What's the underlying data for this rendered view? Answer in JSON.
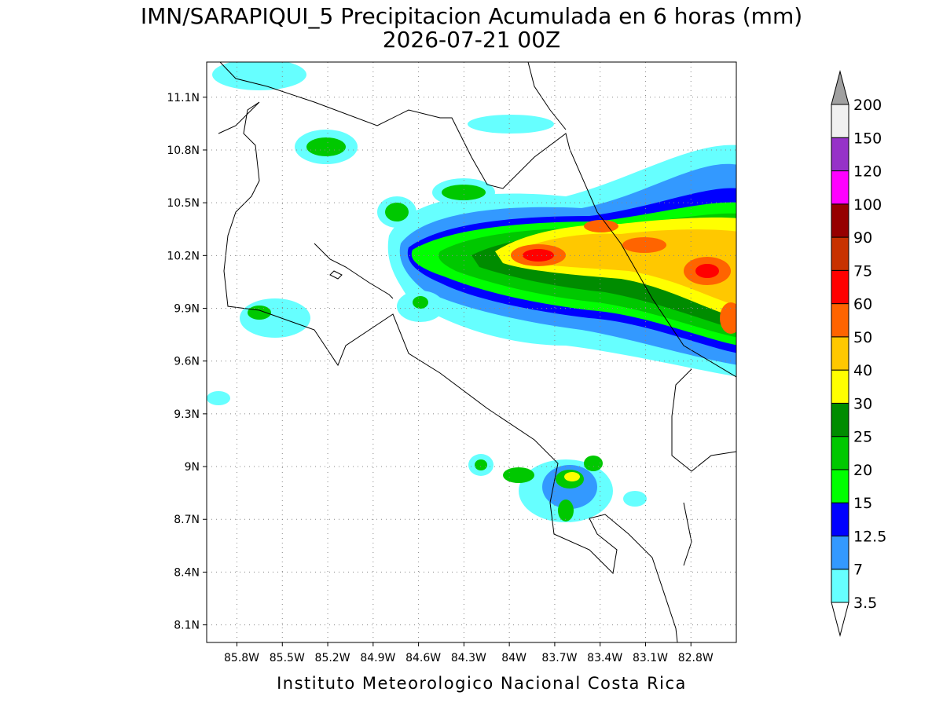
{
  "header": {
    "title": "IMN/SARAPIQUI_5 Precipitacion Acumulada en 6 horas (mm)",
    "subtitle": "2026-07-21 00Z"
  },
  "map": {
    "lonlim": [
      -86.0,
      -82.5
    ],
    "latlim": [
      8.0,
      11.3
    ],
    "grid": true,
    "lat_ticks": [
      {
        "value": 11.1,
        "label": "11.1N"
      },
      {
        "value": 10.8,
        "label": "10.8N"
      },
      {
        "value": 10.5,
        "label": "10.5N"
      },
      {
        "value": 10.2,
        "label": "10.2N"
      },
      {
        "value": 9.9,
        "label": "9.9N"
      },
      {
        "value": 9.6,
        "label": "9.6N"
      },
      {
        "value": 9.3,
        "label": "9.3N"
      },
      {
        "value": 9,
        "label": "9N"
      },
      {
        "value": 8.7,
        "label": "8.7N"
      },
      {
        "value": 8.4,
        "label": "8.4N"
      },
      {
        "value": 8.1,
        "label": "8.1N"
      }
    ],
    "lon_ticks": [
      {
        "value": -85.8,
        "label": "85.8W"
      },
      {
        "value": -85.5,
        "label": "85.5W"
      },
      {
        "value": -85.2,
        "label": "85.2W"
      },
      {
        "value": -84.9,
        "label": "84.9W"
      },
      {
        "value": -84.6,
        "label": "84.6W"
      },
      {
        "value": -84.3,
        "label": "84.3W"
      },
      {
        "value": -84,
        "label": "84W"
      },
      {
        "value": -83.7,
        "label": "83.7W"
      },
      {
        "value": -83.4,
        "label": "83.4W"
      },
      {
        "value": -83.1,
        "label": "83.1W"
      },
      {
        "value": -82.8,
        "label": "82.8W"
      }
    ]
  },
  "colorbar": {
    "levels": [
      3.5,
      7,
      12.5,
      15,
      20,
      25,
      30,
      40,
      50,
      60,
      75,
      90,
      100,
      120,
      150,
      200
    ],
    "colors": [
      "#66ffff",
      "#3399ff",
      "#0000ff",
      "#00ff00",
      "#00c800",
      "#008c00",
      "#ffff00",
      "#ffc800",
      "#ff6400",
      "#ff0000",
      "#c83200",
      "#960000",
      "#ff00ff",
      "#9632c8",
      "#f0f0f0"
    ],
    "under_color": "#ffffff",
    "over_color": "#a0a0a0"
  },
  "footer": "Instituto Meteorologico Nacional Costa Rica"
}
